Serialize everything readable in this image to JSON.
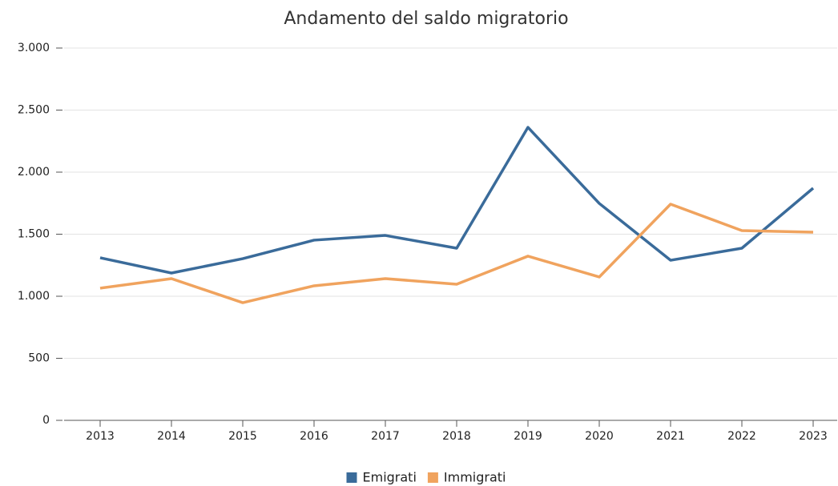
{
  "chart_data": {
    "type": "line",
    "title": "Andamento del saldo migratorio",
    "categories": [
      "2013",
      "2014",
      "2015",
      "2016",
      "2017",
      "2018",
      "2019",
      "2020",
      "2021",
      "2022",
      "2023"
    ],
    "series": [
      {
        "name": "Emigrati",
        "color": "#3a6b9a",
        "values": [
          1310,
          1187,
          1303,
          1452,
          1490,
          1387,
          2361,
          1748,
          1290,
          1387,
          1871
        ]
      },
      {
        "name": "Immigrati",
        "color": "#f0a35e",
        "values": [
          1065,
          1142,
          948,
          1084,
          1142,
          1097,
          1323,
          1155,
          1742,
          1529,
          1516
        ]
      }
    ],
    "ylim": [
      0,
      3000
    ],
    "yticks": [
      0,
      500,
      {
        "value": 1000,
        "label": "1.000"
      },
      {
        "value": 1500,
        "label": "1.500"
      },
      {
        "value": 2000,
        "label": "2.000"
      },
      {
        "value": 2500,
        "label": "2.500"
      },
      {
        "value": 3000,
        "label": "3.000"
      }
    ],
    "grid": true,
    "legend": "bottom"
  }
}
